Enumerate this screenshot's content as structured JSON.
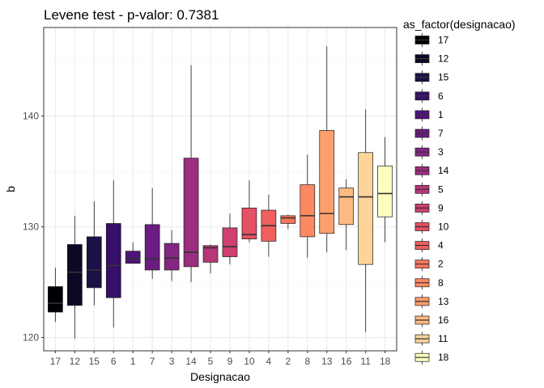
{
  "chart_data": {
    "type": "boxplot",
    "title": "Levene test - p-valor:  0.7381",
    "xlabel": "Designacao",
    "ylabel": "b",
    "ylim": [
      118.8,
      148.0
    ],
    "yticks": [
      120,
      130,
      140
    ],
    "grid": true,
    "legend": {
      "title": "as_factor(designacao)",
      "placement": "right"
    },
    "categories": [
      "17",
      "12",
      "15",
      "6",
      "1",
      "7",
      "3",
      "14",
      "5",
      "9",
      "10",
      "4",
      "2",
      "8",
      "13",
      "16",
      "11",
      "18"
    ],
    "colors": [
      "#000004",
      "#0b0924",
      "#1d1147",
      "#360f6b",
      "#51127c",
      "#6a1c81",
      "#832681",
      "#9c2e7f",
      "#b73779",
      "#cf4070",
      "#e55064",
      "#f1605d",
      "#f8765c",
      "#fc8961",
      "#fe9f6d",
      "#febb81",
      "#fdd49a",
      "#fcfdbf"
    ],
    "series": [
      {
        "category": "17",
        "min": 121.4,
        "q1": 122.3,
        "median": 123.1,
        "q3": 124.6,
        "max": 126.3
      },
      {
        "category": "12",
        "min": 119.9,
        "q1": 122.9,
        "median": 125.9,
        "q3": 128.4,
        "max": 131.0
      },
      {
        "category": "15",
        "min": 122.9,
        "q1": 124.5,
        "median": 126.1,
        "q3": 129.1,
        "max": 132.3
      },
      {
        "category": "6",
        "min": 120.9,
        "q1": 123.6,
        "median": 126.5,
        "q3": 130.3,
        "max": 134.2
      },
      {
        "category": "1",
        "min": 126.7,
        "q1": 126.7,
        "median": 127.1,
        "q3": 127.8,
        "max": 128.6
      },
      {
        "category": "7",
        "min": 125.3,
        "q1": 126.1,
        "median": 127.1,
        "q3": 130.2,
        "max": 133.5
      },
      {
        "category": "3",
        "min": 125.1,
        "q1": 126.1,
        "median": 127.2,
        "q3": 128.5,
        "max": 129.7
      },
      {
        "category": "14",
        "min": 125.0,
        "q1": 126.4,
        "median": 127.7,
        "q3": 136.2,
        "max": 144.6
      },
      {
        "category": "5",
        "min": 125.8,
        "q1": 126.8,
        "median": 128.1,
        "q3": 128.3,
        "max": 128.4
      },
      {
        "category": "9",
        "min": 126.6,
        "q1": 127.3,
        "median": 128.2,
        "q3": 129.9,
        "max": 131.2
      },
      {
        "category": "10",
        "min": 128.6,
        "q1": 128.9,
        "median": 129.3,
        "q3": 131.7,
        "max": 134.2
      },
      {
        "category": "4",
        "min": 127.3,
        "q1": 128.7,
        "median": 130.1,
        "q3": 131.5,
        "max": 132.9
      },
      {
        "category": "2",
        "min": 129.8,
        "q1": 130.3,
        "median": 130.8,
        "q3": 131.0,
        "max": 131.1
      },
      {
        "category": "8",
        "min": 127.2,
        "q1": 129.1,
        "median": 131.0,
        "q3": 133.8,
        "max": 136.5
      },
      {
        "category": "13",
        "min": 127.7,
        "q1": 129.4,
        "median": 131.2,
        "q3": 138.7,
        "max": 146.3
      },
      {
        "category": "16",
        "min": 127.9,
        "q1": 130.2,
        "median": 132.7,
        "q3": 133.5,
        "max": 134.3
      },
      {
        "category": "11",
        "min": 120.5,
        "q1": 126.6,
        "median": 132.7,
        "q3": 136.7,
        "max": 140.6
      },
      {
        "category": "18",
        "min": 128.6,
        "q1": 130.9,
        "median": 133.0,
        "q3": 135.5,
        "max": 138.1
      }
    ]
  }
}
